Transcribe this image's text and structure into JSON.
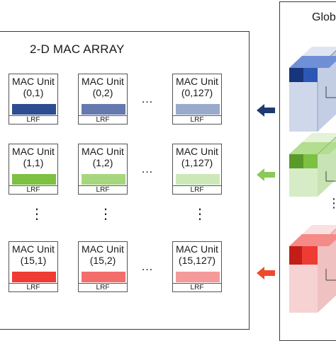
{
  "array": {
    "title": "2-D MAC ARRAY",
    "rows": [
      {
        "color": "#2b4a8c",
        "units": [
          {
            "name": "MAC Unit",
            "index": "(0,1)",
            "lrf": "LRF",
            "bar_color": "#2c4d8f"
          },
          {
            "name": "MAC Unit",
            "index": "(0,2)",
            "lrf": "LRF",
            "bar_color": "#6479ae"
          },
          {
            "name": "MAC Unit",
            "index": "(0,127)",
            "lrf": "LRF",
            "bar_color": "#9aaacb"
          }
        ]
      },
      {
        "color": "#7cc142",
        "units": [
          {
            "name": "MAC Unit",
            "index": "(1,1)",
            "lrf": "LRF",
            "bar_color": "#7cc142"
          },
          {
            "name": "MAC Unit",
            "index": "(1,2)",
            "lrf": "LRF",
            "bar_color": "#a6d77f"
          },
          {
            "name": "MAC Unit",
            "index": "(1,127)",
            "lrf": "LRF",
            "bar_color": "#cde8b8"
          }
        ]
      },
      {
        "color": "#ef3e36",
        "units": [
          {
            "name": "MAC Unit",
            "index": "(15,1)",
            "lrf": "LRF",
            "bar_color": "#ef3b33"
          },
          {
            "name": "MAC Unit",
            "index": "(15,2)",
            "lrf": "LRF",
            "bar_color": "#f36d6a"
          },
          {
            "name": "MAC Unit",
            "index": "(15,127)",
            "lrf": "LRF",
            "bar_color": "#f59a9a"
          }
        ]
      }
    ],
    "hdots": "…",
    "vdots": "⋮"
  },
  "buffer": {
    "title": "Glob",
    "vdots": "⋮"
  },
  "arrows": [
    {
      "color": "#1f3a72"
    },
    {
      "color": "#8cc85a"
    },
    {
      "color": "#ee4b2b"
    }
  ],
  "cubes": [
    {
      "front": "#cfd8ea",
      "top": "#dfe6f2",
      "side": "#c3cde3",
      "block": "#2d57b4",
      "block_dark": "#17357a",
      "block_light": "#6f8fd6"
    },
    {
      "front": "#d6ecc6",
      "top": "#e4f2d8",
      "side": "#c8e3b4",
      "block": "#7cc142",
      "block_dark": "#5a9a2a",
      "block_light": "#b3dd8f"
    },
    {
      "front": "#f6d2d2",
      "top": "#fae0e0",
      "side": "#f0c1c1",
      "block": "#ee3b33",
      "block_dark": "#c21d17",
      "block_light": "#f58a86"
    }
  ]
}
